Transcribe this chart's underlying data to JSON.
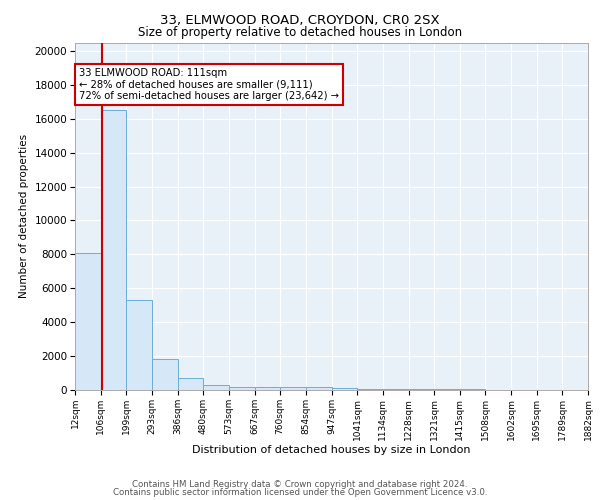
{
  "title1": "33, ELMWOOD ROAD, CROYDON, CR0 2SX",
  "title2": "Size of property relative to detached houses in London",
  "xlabel": "Distribution of detached houses by size in London",
  "ylabel": "Number of detached properties",
  "bin_edges": [
    12,
    106,
    199,
    293,
    386,
    480,
    573,
    667,
    760,
    854,
    947,
    1041,
    1134,
    1228,
    1321,
    1415,
    1508,
    1602,
    1695,
    1789,
    1882
  ],
  "bar_heights": [
    8100,
    16500,
    5300,
    1850,
    700,
    300,
    200,
    200,
    175,
    150,
    100,
    80,
    60,
    50,
    40,
    30,
    25,
    20,
    15,
    10
  ],
  "bar_color": "#d6e8f7",
  "bar_edge_color": "#6aaed6",
  "property_line_x": 111,
  "property_line_color": "#cc0000",
  "annotation_text": "33 ELMWOOD ROAD: 111sqm\n← 28% of detached houses are smaller (9,111)\n72% of semi-detached houses are larger (23,642) →",
  "annotation_box_color": "#ffffff",
  "annotation_box_edge": "#cc0000",
  "ylim": [
    0,
    20500
  ],
  "yticks": [
    0,
    2000,
    4000,
    6000,
    8000,
    10000,
    12000,
    14000,
    16000,
    18000,
    20000
  ],
  "footer1": "Contains HM Land Registry data © Crown copyright and database right 2024.",
  "footer2": "Contains public sector information licensed under the Open Government Licence v3.0.",
  "plot_bg_color": "#e8f0f8"
}
